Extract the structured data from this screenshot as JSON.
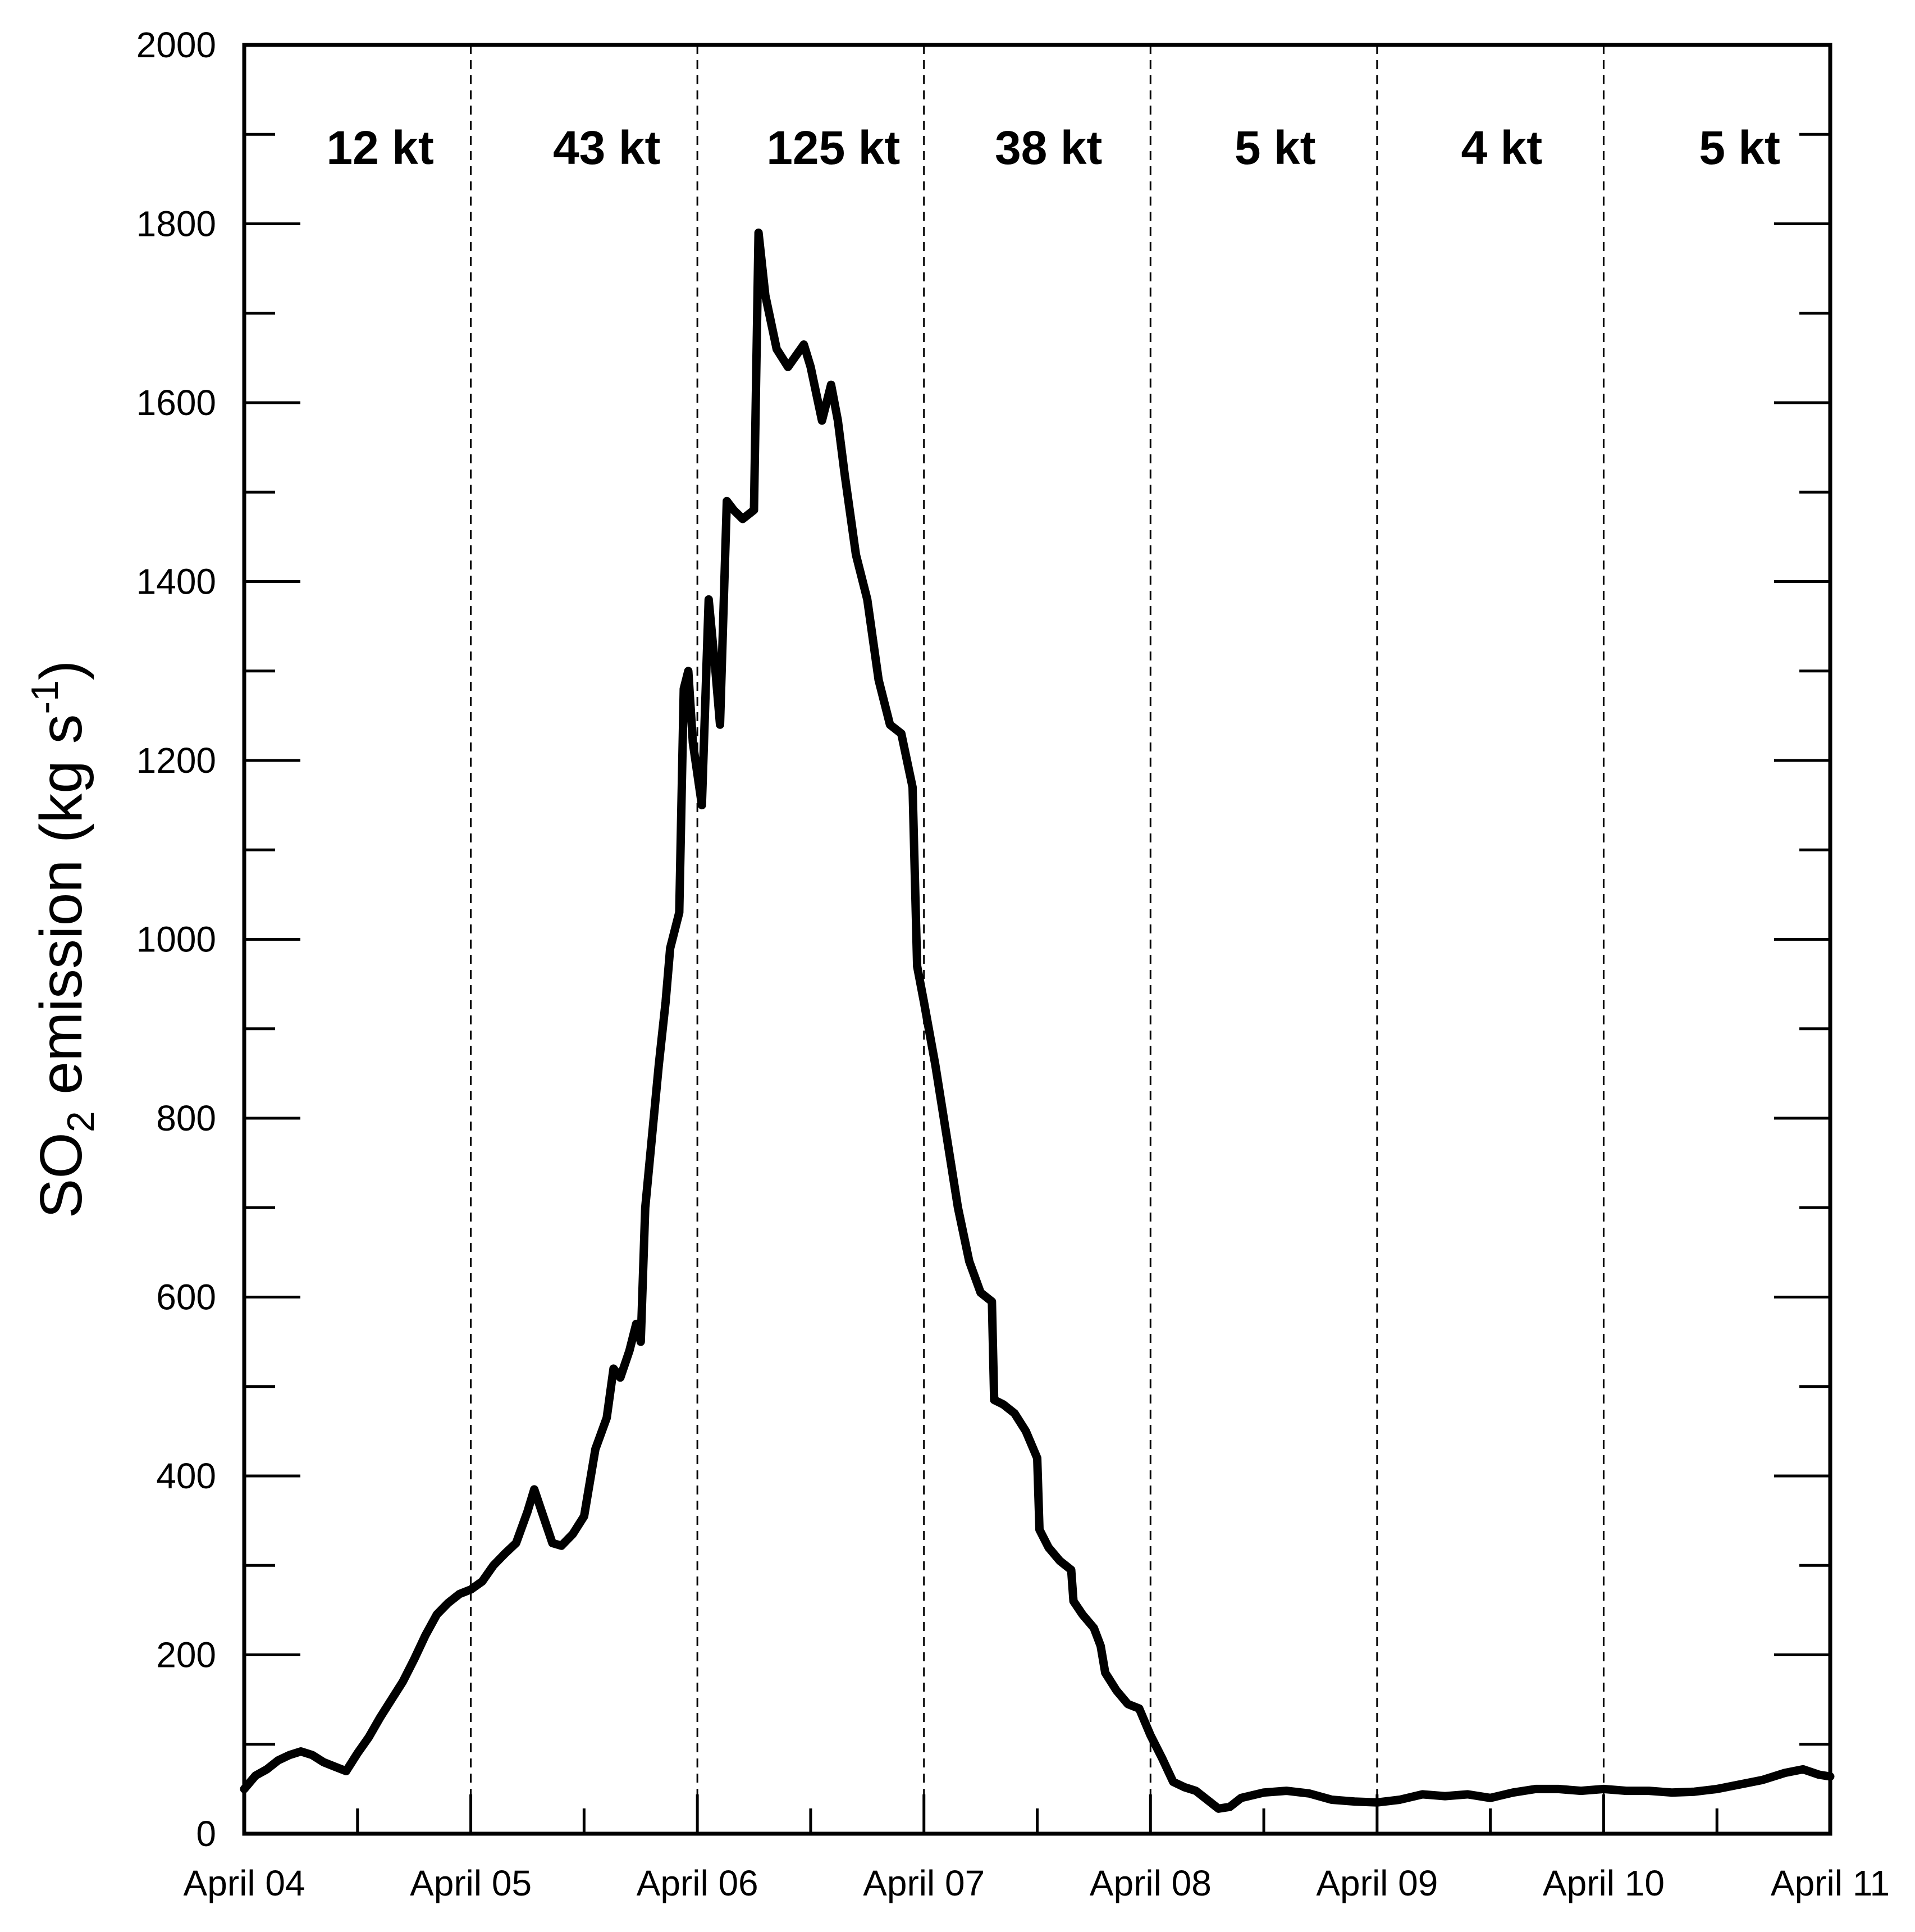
{
  "chart_data": {
    "type": "line",
    "title": "",
    "xlabel": "",
    "ylabel": {
      "prefix": "SO",
      "subscript": "2",
      "middle": " emission (kg s",
      "superscript": "-1",
      "suffix": ")"
    },
    "xlim": [
      "April 04",
      "April 11"
    ],
    "ylim": [
      0,
      2000
    ],
    "y_major_ticks": [
      0,
      200,
      400,
      600,
      800,
      1000,
      1200,
      1400,
      1600,
      1800,
      2000
    ],
    "y_minor_step": 100,
    "x_tick_labels": [
      "April 04",
      "April 05",
      "April 06",
      "April 07",
      "April 08",
      "April 09",
      "April 10",
      "April 11"
    ],
    "grid": false,
    "dashed_day_dividers": [
      "April 05",
      "April 06",
      "April 07",
      "April 08",
      "April 09",
      "April 10"
    ],
    "period_totals": [
      "12 kt",
      "43 kt",
      "125 kt",
      "38 kt",
      "5 kt",
      "4 kt",
      "5 kt"
    ],
    "line_color": "#000000",
    "series": [
      {
        "x_unit": "days since April 04 00:00",
        "points": [
          [
            0.0,
            50
          ],
          [
            0.05,
            65
          ],
          [
            0.1,
            72
          ],
          [
            0.15,
            82
          ],
          [
            0.2,
            88
          ],
          [
            0.25,
            92
          ],
          [
            0.3,
            88
          ],
          [
            0.35,
            80
          ],
          [
            0.4,
            75
          ],
          [
            0.45,
            70
          ],
          [
            0.5,
            90
          ],
          [
            0.55,
            108
          ],
          [
            0.6,
            130
          ],
          [
            0.65,
            150
          ],
          [
            0.7,
            170
          ],
          [
            0.75,
            195
          ],
          [
            0.8,
            222
          ],
          [
            0.85,
            245
          ],
          [
            0.9,
            258
          ],
          [
            0.95,
            268
          ],
          [
            1.0,
            273
          ],
          [
            1.05,
            282
          ],
          [
            1.1,
            300
          ],
          [
            1.15,
            313
          ],
          [
            1.2,
            325
          ],
          [
            1.25,
            360
          ],
          [
            1.28,
            385
          ],
          [
            1.32,
            355
          ],
          [
            1.36,
            325
          ],
          [
            1.4,
            322
          ],
          [
            1.45,
            335
          ],
          [
            1.5,
            355
          ],
          [
            1.55,
            430
          ],
          [
            1.6,
            465
          ],
          [
            1.63,
            520
          ],
          [
            1.66,
            510
          ],
          [
            1.7,
            540
          ],
          [
            1.73,
            570
          ],
          [
            1.75,
            550
          ],
          [
            1.77,
            700
          ],
          [
            1.8,
            780
          ],
          [
            1.83,
            860
          ],
          [
            1.86,
            930
          ],
          [
            1.88,
            990
          ],
          [
            1.92,
            1030
          ],
          [
            1.94,
            1280
          ],
          [
            1.96,
            1300
          ],
          [
            1.98,
            1220
          ],
          [
            2.02,
            1150
          ],
          [
            2.05,
            1380
          ],
          [
            2.08,
            1300
          ],
          [
            2.1,
            1240
          ],
          [
            2.13,
            1490
          ],
          [
            2.16,
            1480
          ],
          [
            2.2,
            1470
          ],
          [
            2.25,
            1480
          ],
          [
            2.27,
            1790
          ],
          [
            2.3,
            1720
          ],
          [
            2.35,
            1660
          ],
          [
            2.4,
            1640
          ],
          [
            2.47,
            1665
          ],
          [
            2.5,
            1640
          ],
          [
            2.55,
            1580
          ],
          [
            2.59,
            1620
          ],
          [
            2.62,
            1580
          ],
          [
            2.65,
            1520
          ],
          [
            2.7,
            1430
          ],
          [
            2.75,
            1380
          ],
          [
            2.8,
            1290
          ],
          [
            2.85,
            1240
          ],
          [
            2.9,
            1230
          ],
          [
            2.95,
            1170
          ],
          [
            2.97,
            970
          ],
          [
            3.0,
            930
          ],
          [
            3.05,
            860
          ],
          [
            3.1,
            780
          ],
          [
            3.15,
            700
          ],
          [
            3.2,
            640
          ],
          [
            3.25,
            605
          ],
          [
            3.3,
            595
          ],
          [
            3.31,
            485
          ],
          [
            3.35,
            480
          ],
          [
            3.4,
            470
          ],
          [
            3.45,
            450
          ],
          [
            3.5,
            420
          ],
          [
            3.51,
            340
          ],
          [
            3.55,
            320
          ],
          [
            3.6,
            305
          ],
          [
            3.65,
            295
          ],
          [
            3.66,
            260
          ],
          [
            3.7,
            245
          ],
          [
            3.75,
            230
          ],
          [
            3.78,
            210
          ],
          [
            3.8,
            180
          ],
          [
            3.85,
            160
          ],
          [
            3.9,
            145
          ],
          [
            3.95,
            140
          ],
          [
            4.0,
            110
          ],
          [
            4.05,
            85
          ],
          [
            4.1,
            58
          ],
          [
            4.15,
            52
          ],
          [
            4.2,
            48
          ],
          [
            4.25,
            38
          ],
          [
            4.3,
            28
          ],
          [
            4.35,
            30
          ],
          [
            4.4,
            40
          ],
          [
            4.5,
            46
          ],
          [
            4.6,
            48
          ],
          [
            4.7,
            45
          ],
          [
            4.8,
            38
          ],
          [
            4.9,
            36
          ],
          [
            5.0,
            35
          ],
          [
            5.1,
            38
          ],
          [
            5.2,
            44
          ],
          [
            5.3,
            42
          ],
          [
            5.4,
            44
          ],
          [
            5.5,
            40
          ],
          [
            5.6,
            46
          ],
          [
            5.7,
            50
          ],
          [
            5.8,
            50
          ],
          [
            5.9,
            48
          ],
          [
            6.0,
            50
          ],
          [
            6.1,
            48
          ],
          [
            6.2,
            48
          ],
          [
            6.3,
            46
          ],
          [
            6.4,
            47
          ],
          [
            6.5,
            50
          ],
          [
            6.6,
            55
          ],
          [
            6.7,
            60
          ],
          [
            6.8,
            68
          ],
          [
            6.88,
            72
          ],
          [
            6.95,
            66
          ],
          [
            7.0,
            64
          ]
        ]
      }
    ]
  }
}
